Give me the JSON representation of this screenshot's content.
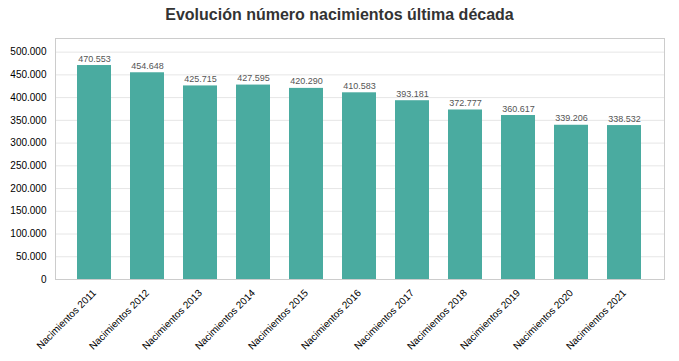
{
  "chart_data": {
    "type": "bar",
    "title": "Evolución número nacimientos última década",
    "categories": [
      "Nacimientos 2011",
      "Nacimientos 2012",
      "Nacimientos 2013",
      "Nacimientos 2014",
      "Nacimientos 2015",
      "Nacimientos 2016",
      "Nacimientos 2017",
      "Nacimientos 2018",
      "Nacimientos 2019",
      "Nacimientos 2020",
      "Nacimientos 2021"
    ],
    "values": [
      470553,
      454648,
      425715,
      427595,
      420290,
      410583,
      393181,
      372777,
      360617,
      339206,
      338532
    ],
    "value_labels": [
      "470.553",
      "454.648",
      "425.715",
      "427.595",
      "420.290",
      "410.583",
      "393.181",
      "372.777",
      "360.617",
      "339.206",
      "338.532"
    ],
    "data_labels": true,
    "color": "#4AABA0",
    "ylim": [
      0,
      530000
    ],
    "yticks": [
      0,
      {
        "value": 50000,
        "label": "50.000"
      },
      {
        "value": 100000,
        "label": "100.000"
      },
      {
        "value": 150000,
        "label": "150.000"
      },
      {
        "value": 200000,
        "label": "200.000"
      },
      {
        "value": 250000,
        "label": "250.000"
      },
      {
        "value": 300000,
        "label": "300.000"
      },
      {
        "value": 350000,
        "label": "350.000"
      },
      {
        "value": 400000,
        "label": "400.000"
      },
      {
        "value": 450000,
        "label": "450.000"
      },
      {
        "value": 500000,
        "label": "500.000"
      }
    ],
    "grid": true
  }
}
